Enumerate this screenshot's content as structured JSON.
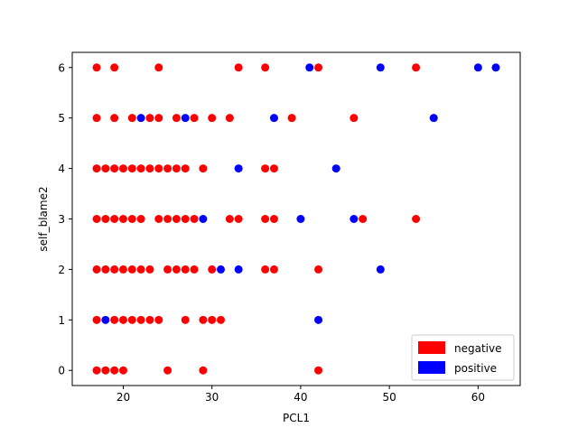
{
  "chart_data": {
    "type": "scatter",
    "title": "",
    "xlabel": "PCL1",
    "ylabel": "self_blame2",
    "xlim": [
      14.25,
      64.75
    ],
    "ylim": [
      -0.3,
      6.3
    ],
    "xticks": [
      20,
      30,
      40,
      50,
      60
    ],
    "yticks": [
      0,
      1,
      2,
      3,
      4,
      5,
      6
    ],
    "grid": false,
    "legend_position": "lower right",
    "series": [
      {
        "name": "negative",
        "color": "#ff0000",
        "points": [
          [
            17,
            6
          ],
          [
            19,
            6
          ],
          [
            24,
            6
          ],
          [
            33,
            6
          ],
          [
            36,
            6
          ],
          [
            42,
            6
          ],
          [
            53,
            6
          ],
          [
            17,
            5
          ],
          [
            19,
            5
          ],
          [
            21,
            5
          ],
          [
            23,
            5
          ],
          [
            24,
            5
          ],
          [
            26,
            5
          ],
          [
            28,
            5
          ],
          [
            30,
            5
          ],
          [
            32,
            5
          ],
          [
            39,
            5
          ],
          [
            46,
            5
          ],
          [
            17,
            4
          ],
          [
            18,
            4
          ],
          [
            19,
            4
          ],
          [
            20,
            4
          ],
          [
            21,
            4
          ],
          [
            22,
            4
          ],
          [
            23,
            4
          ],
          [
            24,
            4
          ],
          [
            25,
            4
          ],
          [
            26,
            4
          ],
          [
            27,
            4
          ],
          [
            29,
            4
          ],
          [
            36,
            4
          ],
          [
            37,
            4
          ],
          [
            17,
            3
          ],
          [
            18,
            3
          ],
          [
            19,
            3
          ],
          [
            20,
            3
          ],
          [
            21,
            3
          ],
          [
            22,
            3
          ],
          [
            24,
            3
          ],
          [
            25,
            3
          ],
          [
            26,
            3
          ],
          [
            27,
            3
          ],
          [
            28,
            3
          ],
          [
            32,
            3
          ],
          [
            33,
            3
          ],
          [
            36,
            3
          ],
          [
            37,
            3
          ],
          [
            47,
            3
          ],
          [
            53,
            3
          ],
          [
            17,
            2
          ],
          [
            18,
            2
          ],
          [
            19,
            2
          ],
          [
            20,
            2
          ],
          [
            21,
            2
          ],
          [
            22,
            2
          ],
          [
            23,
            2
          ],
          [
            25,
            2
          ],
          [
            26,
            2
          ],
          [
            27,
            2
          ],
          [
            28,
            2
          ],
          [
            30,
            2
          ],
          [
            36,
            2
          ],
          [
            37,
            2
          ],
          [
            42,
            2
          ],
          [
            17,
            1
          ],
          [
            19,
            1
          ],
          [
            20,
            1
          ],
          [
            21,
            1
          ],
          [
            22,
            1
          ],
          [
            23,
            1
          ],
          [
            24,
            1
          ],
          [
            27,
            1
          ],
          [
            29,
            1
          ],
          [
            30,
            1
          ],
          [
            31,
            1
          ],
          [
            17,
            0
          ],
          [
            18,
            0
          ],
          [
            19,
            0
          ],
          [
            20,
            0
          ],
          [
            25,
            0
          ],
          [
            29,
            0
          ],
          [
            42,
            0
          ]
        ]
      },
      {
        "name": "positive",
        "color": "#0000ff",
        "points": [
          [
            41,
            6
          ],
          [
            49,
            6
          ],
          [
            60,
            6
          ],
          [
            62,
            6
          ],
          [
            22,
            5
          ],
          [
            27,
            5
          ],
          [
            37,
            5
          ],
          [
            55,
            5
          ],
          [
            33,
            4
          ],
          [
            44,
            4
          ],
          [
            29,
            3
          ],
          [
            40,
            3
          ],
          [
            46,
            3
          ],
          [
            31,
            2
          ],
          [
            33,
            2
          ],
          [
            49,
            2
          ],
          [
            18,
            1
          ],
          [
            42,
            1
          ]
        ]
      }
    ]
  }
}
